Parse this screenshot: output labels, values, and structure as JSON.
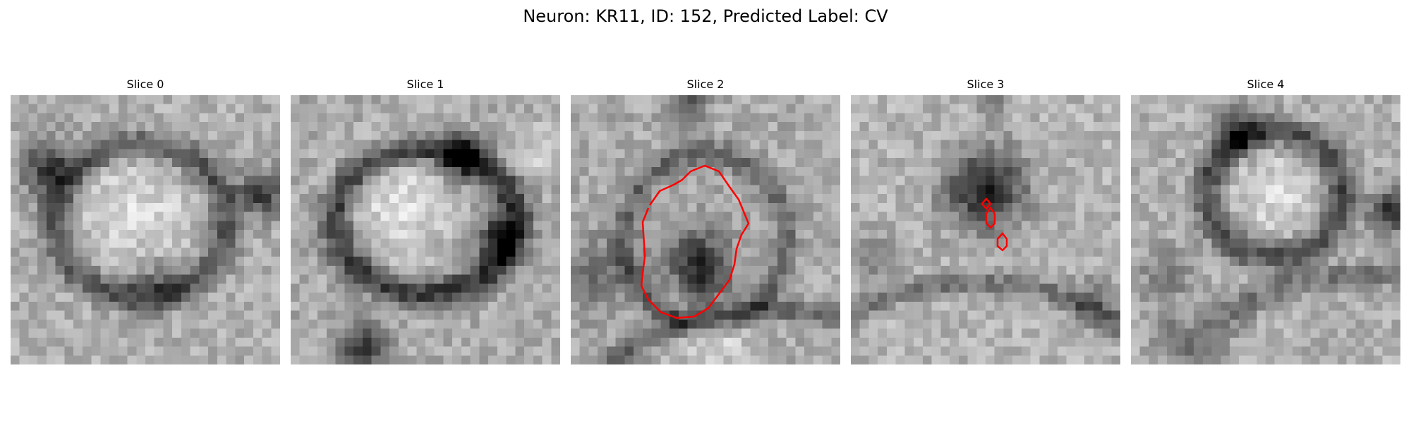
{
  "figure": {
    "title": "Neuron: KR11, ID: 152, Predicted Label: CV"
  },
  "contour_color": "#ff0000",
  "panels": [
    {
      "title": "Slice 0",
      "has_contour": false
    },
    {
      "title": "Slice 1",
      "has_contour": false
    },
    {
      "title": "Slice 2",
      "has_contour": true
    },
    {
      "title": "Slice 3",
      "has_contour": true
    },
    {
      "title": "Slice 4",
      "has_contour": false
    }
  ]
}
